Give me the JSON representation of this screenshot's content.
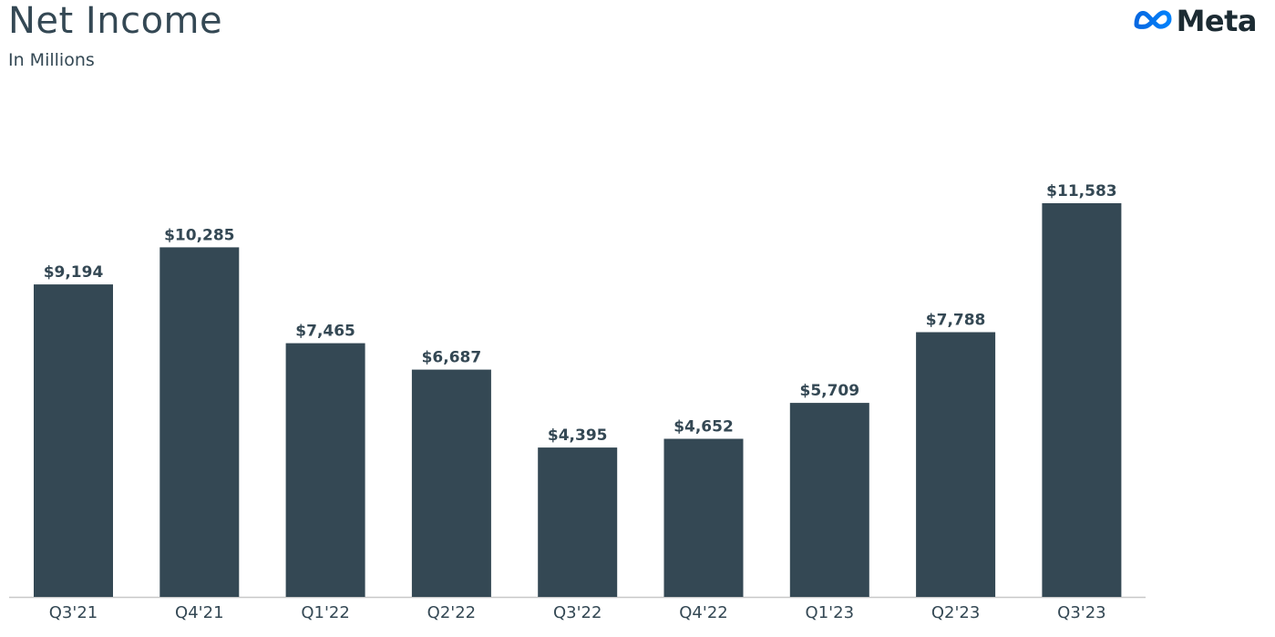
{
  "header": {
    "title": "Net Income",
    "subtitle": "In Millions"
  },
  "logo": {
    "word": "Meta",
    "icon": "meta-infinity-icon",
    "gradient": [
      "#0668E1",
      "#0081FB"
    ]
  },
  "colors": {
    "bar": "#344854",
    "text": "#344854",
    "axis": "#c8c8c8"
  },
  "chart_data": {
    "type": "bar",
    "title": "Net Income",
    "subtitle": "In Millions",
    "categories": [
      "Q3'21",
      "Q4'21",
      "Q1'22",
      "Q2'22",
      "Q3'22",
      "Q4'22",
      "Q1'23",
      "Q2'23",
      "Q3'23"
    ],
    "values": [
      9194,
      10285,
      7465,
      6687,
      4395,
      4652,
      5709,
      7788,
      11583
    ],
    "data_labels": [
      "$9,194",
      "$10,285",
      "$7,465",
      "$6,687",
      "$4,395",
      "$4,652",
      "$5,709",
      "$7,788",
      "$11,583"
    ],
    "xlabel": "",
    "ylabel": "",
    "ylim": [
      0,
      11583
    ],
    "grid": false,
    "legend": "none"
  }
}
